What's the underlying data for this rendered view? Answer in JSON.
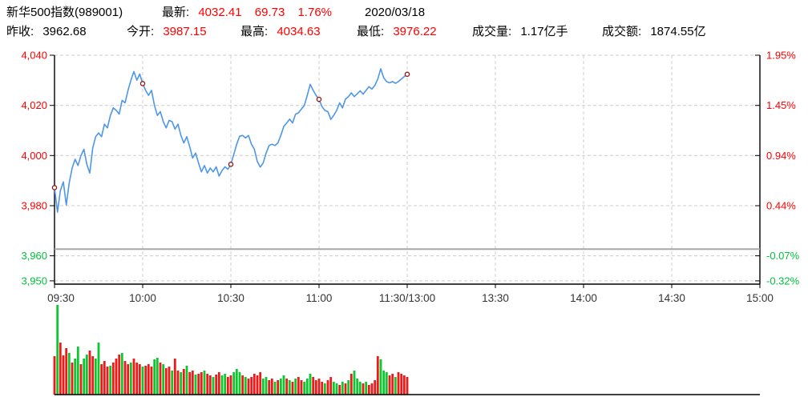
{
  "header": {
    "title": "新华500指数(989001)",
    "latest_label": "最新:",
    "latest": "4032.41",
    "change": "69.73",
    "change_pct": "1.76%",
    "date": "2020/03/18",
    "stats": [
      {
        "label": "昨收:",
        "value": "3962.68"
      },
      {
        "label": "今开:",
        "value": "3987.15"
      },
      {
        "label": "最高:",
        "value": "4034.63"
      },
      {
        "label": "最低:",
        "value": "3976.22"
      },
      {
        "label": "成交量:",
        "value": "1.17亿手"
      },
      {
        "label": "成交额:",
        "value": "1874.55亿"
      }
    ]
  },
  "colors": {
    "up": "#ff0000",
    "down": "#00c03c",
    "line": "#4d96e8",
    "marker": "#991111",
    "grid": "#cccccc",
    "prev_close_line": "#a8a8a8",
    "axis": "#000000",
    "x_label": "#333333",
    "vol_up": "#ee1a1a",
    "vol_down": "#0ac82d"
  },
  "chart_data": {
    "type": "line",
    "title": "新华500指数(989001) 分时走势 2020/03/18",
    "legend_position": "none",
    "grid": "dashed",
    "prev_close": 3962.68,
    "ylim": [
      3948.7,
      4040
    ],
    "session_minutes": 240,
    "minutes_plotted": 120,
    "y_ticks": [
      {
        "price": "4,040",
        "value": 4040,
        "pct": "1.95%",
        "dir": "up"
      },
      {
        "price": "4,020",
        "value": 4020,
        "pct": "1.45%",
        "dir": "up"
      },
      {
        "price": "4,000",
        "value": 4000,
        "pct": "0.94%",
        "dir": "up"
      },
      {
        "price": "3,980",
        "value": 3980,
        "pct": "0.44%",
        "dir": "up"
      },
      {
        "price": "3,960",
        "value": 3960,
        "pct": "-0.07%",
        "dir": "down"
      },
      {
        "price": "3,950",
        "value": 3950,
        "pct": "-0.32%",
        "dir": "down"
      }
    ],
    "x_ticks": [
      {
        "label": "09:30",
        "minute": 0
      },
      {
        "label": "10:00",
        "minute": 30
      },
      {
        "label": "10:30",
        "minute": 60
      },
      {
        "label": "11:00",
        "minute": 90
      },
      {
        "label": "11:30/13:00",
        "minute": 120
      },
      {
        "label": "13:30",
        "minute": 150
      },
      {
        "label": "14:00",
        "minute": 180
      },
      {
        "label": "14:30",
        "minute": 210
      },
      {
        "label": "15:00",
        "minute": 240
      }
    ],
    "marker_indices": [
      0,
      30,
      60,
      90,
      120
    ],
    "price_series": [
      3987.2,
      3977.4,
      3986.0,
      3989.5,
      3980.3,
      3989.0,
      3995.0,
      3998.5,
      3996.0,
      4000.0,
      4002.5,
      3996.5,
      3993.0,
      4003.0,
      4007.5,
      4009.0,
      4007.5,
      4012.5,
      4011.0,
      4016.0,
      4019.0,
      4018.0,
      4016.5,
      4022.0,
      4021.0,
      4026.0,
      4030.0,
      4033.5,
      4030.0,
      4032.5,
      4028.7,
      4026.0,
      4024.0,
      4026.0,
      4020.0,
      4016.0,
      4017.5,
      4013.5,
      4011.0,
      4014.0,
      4013.5,
      4010.5,
      4012.5,
      4008.0,
      4005.0,
      4007.5,
      4003.5,
      3999.0,
      4001.0,
      3997.0,
      3993.5,
      3996.0,
      3993.0,
      3995.0,
      3993.5,
      3995.5,
      3991.8,
      3994.0,
      3995.5,
      3994.5,
      3996.5,
      4000.5,
      4004.5,
      4007.7,
      4008.0,
      4007.0,
      4008.0,
      4004.5,
      4002.5,
      3997.6,
      3995.4,
      3997.0,
      4001.0,
      4004.0,
      4004.5,
      4004.0,
      4005.0,
      4008.0,
      4011.6,
      4013.0,
      4014.5,
      4013.0,
      4016.5,
      4017.0,
      4018.5,
      4020.0,
      4024.0,
      4028.4,
      4026.0,
      4024.0,
      4022.4,
      4019.5,
      4018.0,
      4017.5,
      4014.4,
      4016.0,
      4018.0,
      4021.0,
      4019.0,
      4022.5,
      4023.5,
      4025.0,
      4023.5,
      4024.6,
      4025.8,
      4024.5,
      4026.0,
      4027.5,
      4026.5,
      4028.0,
      4030.5,
      4034.6,
      4031.0,
      4029.5,
      4029.0,
      4029.5,
      4028.8,
      4029.5,
      4030.5,
      4031.5,
      4032.41
    ],
    "volume": {
      "heights": [
        48,
        112,
        65,
        49,
        58,
        52,
        40,
        45,
        60,
        38,
        45,
        50,
        55,
        48,
        45,
        65,
        38,
        42,
        35,
        36,
        40,
        45,
        50,
        52,
        42,
        38,
        40,
        45,
        40,
        38,
        35,
        36,
        38,
        35,
        44,
        46,
        40,
        38,
        33,
        35,
        30,
        45,
        30,
        28,
        32,
        36,
        28,
        30,
        25,
        26,
        28,
        30,
        26,
        24,
        22,
        25,
        28,
        24,
        26,
        22,
        24,
        28,
        32,
        28,
        24,
        22,
        20,
        22,
        26,
        24,
        28,
        20,
        22,
        18,
        20,
        16,
        18,
        20,
        24,
        20,
        18,
        16,
        20,
        22,
        18,
        16,
        20,
        26,
        22,
        18,
        20,
        16,
        14,
        18,
        22,
        16,
        14,
        12,
        16,
        14,
        18,
        26,
        30,
        20,
        16,
        14,
        16,
        12,
        14,
        18,
        48,
        44,
        30,
        28,
        24,
        26,
        22,
        28,
        26,
        24,
        22
      ],
      "colors": "rgrrrgrggrggrrggrrrgrrrgrrgrrrgrrrggrgrrgrrgrgrrgrrgrrgrrggrrgggrgrrrrrggrrgrggrgrgrrgggrrrrgrrggrgrgrgggrgrrrrgggrrgrrrr"
    }
  }
}
